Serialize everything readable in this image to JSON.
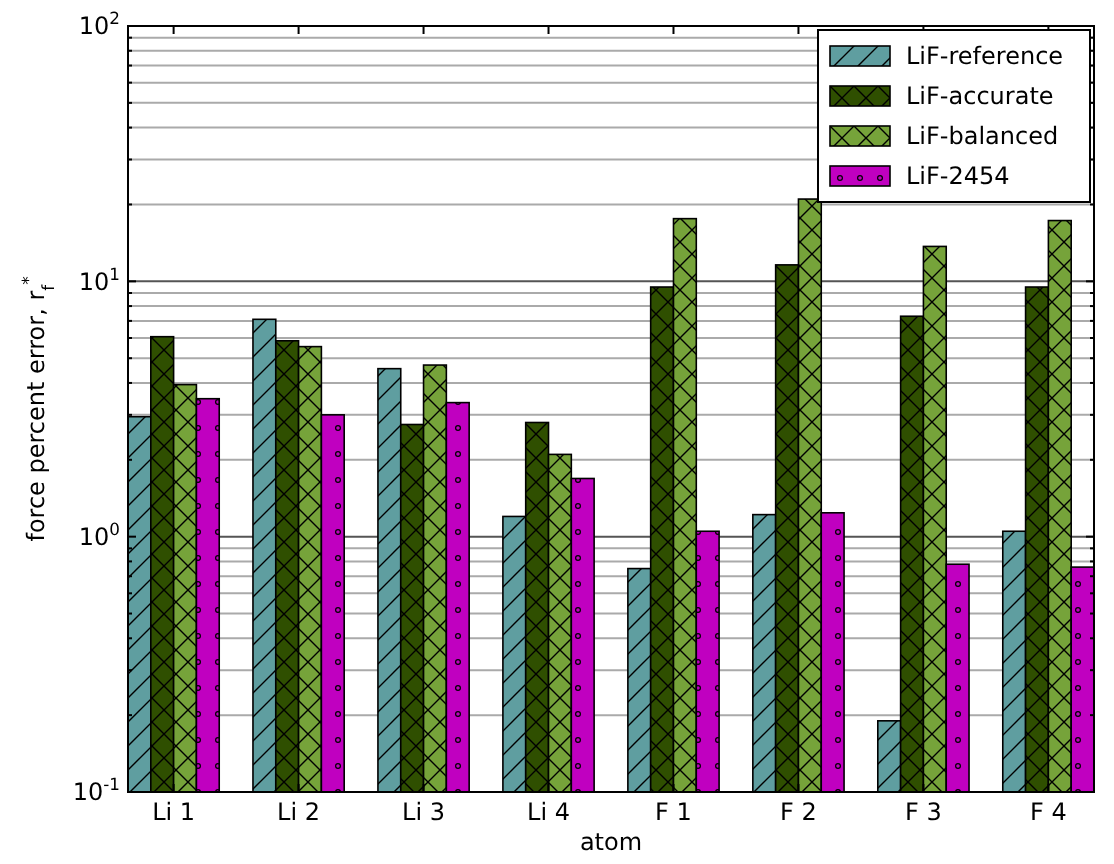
{
  "chart_data": {
    "type": "bar",
    "xlabel": "atom",
    "ylabel": "force percent error, r$_{f}$$^{*}$",
    "categories": [
      "Li 1",
      "Li 2",
      "Li 3",
      "Li 4",
      "F 1",
      "F 2",
      "F 3",
      "F 4"
    ],
    "series": [
      {
        "name": "LiF-reference",
        "color": "#5f9ea0",
        "values": [
          2.95,
          7.1,
          4.55,
          1.2,
          0.75,
          1.22,
          0.19,
          1.05
        ]
      },
      {
        "name": "LiF-accurate",
        "color": "#2f4f00",
        "values": [
          6.07,
          5.85,
          2.75,
          2.8,
          9.5,
          11.6,
          7.3,
          9.5
        ]
      },
      {
        "name": "LiF-balanced",
        "color": "#76a33a",
        "values": [
          3.94,
          5.55,
          4.7,
          2.1,
          17.6,
          21,
          13.7,
          17.3
        ]
      },
      {
        "name": "LiF-2454",
        "color": "#c000c0",
        "values": [
          3.47,
          3.0,
          3.35,
          1.69,
          1.05,
          1.24,
          0.78,
          0.76
        ]
      }
    ],
    "log": true,
    "ylim": [
      0.1,
      100
    ],
    "yticks": [
      {
        "value": 0.1,
        "label": "10$^{-1}$"
      },
      {
        "value": 0.2,
        "label": null
      },
      {
        "value": 0.3,
        "label": null
      },
      {
        "value": 0.4,
        "label": null
      },
      {
        "value": 0.5,
        "label": null
      },
      {
        "value": 0.6,
        "label": null
      },
      {
        "value": 0.7,
        "label": null
      },
      {
        "value": 0.8,
        "label": null
      },
      {
        "value": 0.9,
        "label": null
      },
      {
        "value": 1,
        "label": "10$^{0}$"
      },
      {
        "value": 2,
        "label": null
      },
      {
        "value": 3,
        "label": null
      },
      {
        "value": 4,
        "label": null
      },
      {
        "value": 5,
        "label": null
      },
      {
        "value": 6,
        "label": null
      },
      {
        "value": 7,
        "label": null
      },
      {
        "value": 8,
        "label": null
      },
      {
        "value": 9,
        "label": null
      },
      {
        "value": 10,
        "label": "10$^{1}$"
      },
      {
        "value": 20,
        "label": null
      },
      {
        "value": 30,
        "label": null
      },
      {
        "value": 40,
        "label": null
      },
      {
        "value": 50,
        "label": null
      },
      {
        "value": 60,
        "label": null
      },
      {
        "value": 70,
        "label": null
      },
      {
        "value": 80,
        "label": null
      },
      {
        "value": 90,
        "label": null
      },
      {
        "value": 100,
        "label": "10$^{2}$"
      }
    ],
    "grid": "y",
    "legend": "top right"
  }
}
